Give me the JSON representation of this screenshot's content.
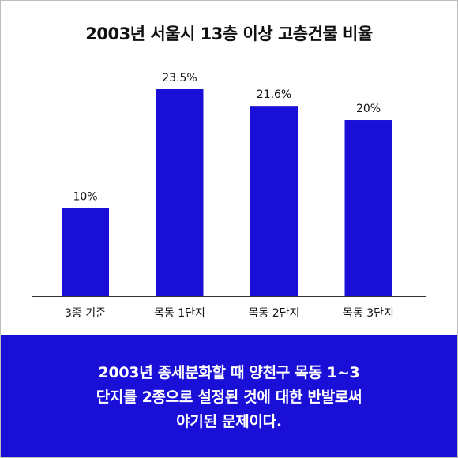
{
  "card": {
    "title": "2003년 서울시 13층 이상 고층건물 비율",
    "caption": "2003년 종세분화할 때  양천구 목동 1~3\n단지를 2종으로 설정된 것에 대한 반발로써\n야기된 문제이다."
  },
  "colors": {
    "bar": "#1a0fd6",
    "footer": "#1a0fd6",
    "text": "#111111",
    "axis": "#333333"
  },
  "chart_data": {
    "type": "bar",
    "title": "2003년 서울시 13층 이상 고층건물 비율",
    "categories": [
      "3종 기준",
      "목동 1단지",
      "목동 2단지",
      "목동 3단지"
    ],
    "values": [
      10,
      23.5,
      21.6,
      20
    ],
    "data_labels": [
      "10%",
      "23.5%",
      "21.6%",
      "20%"
    ],
    "xlabel": "",
    "ylabel": "",
    "ylim": [
      0,
      23.5
    ],
    "grid": false,
    "legend": "none"
  }
}
